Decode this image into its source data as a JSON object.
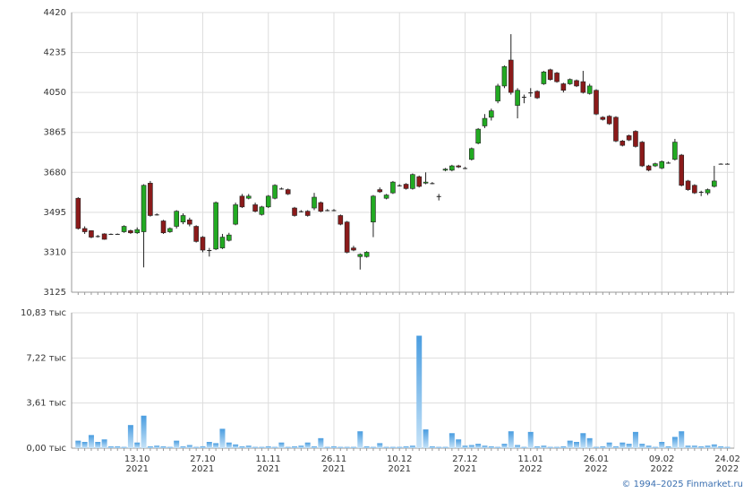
{
  "chart_data": [
    {
      "type": "candlestick",
      "ylim": [
        3125,
        4420
      ],
      "yticks": [
        3125,
        3310,
        3495,
        3680,
        3865,
        4050,
        4235,
        4420
      ],
      "grid": true,
      "up_color": "#22aa22",
      "down_color": "#8b1a1a",
      "open": [
        3560,
        3420,
        3410,
        3385,
        3395,
        3395,
        3395,
        3405,
        3410,
        3400,
        3405,
        3630,
        3485,
        3455,
        3405,
        3430,
        3450,
        3460,
        3430,
        3380,
        3320,
        3325,
        3330,
        3365,
        3440,
        3570,
        3560,
        3530,
        3485,
        3520,
        3560,
        3605,
        3600,
        3515,
        3500,
        3500,
        3515,
        3540,
        3505,
        3505,
        3480,
        3450,
        3330,
        3290,
        3290,
        3450,
        3600,
        3560,
        3585,
        3620,
        3625,
        3605,
        3660,
        3630,
        3630,
        3570,
        3690,
        3690,
        3710,
        3700,
        3740,
        3815,
        3895,
        3935,
        4010,
        4080,
        4200,
        3990,
        4030,
        4050,
        4055,
        4090,
        4155,
        4140,
        4090,
        4090,
        4105,
        4100,
        4045,
        4060,
        3935,
        3940,
        3935,
        3825,
        3850,
        3870,
        3820,
        3710,
        3710,
        3700,
        3725,
        3740,
        3760,
        3640,
        3620,
        3590,
        3585,
        3615,
        3720,
        3720
      ],
      "high": [
        3565,
        3430,
        3412,
        3390,
        3398,
        3397,
        3397,
        3435,
        3415,
        3425,
        3625,
        3640,
        3490,
        3460,
        3425,
        3505,
        3490,
        3470,
        3435,
        3385,
        3330,
        3545,
        3395,
        3400,
        3540,
        3580,
        3580,
        3540,
        3525,
        3575,
        3625,
        3610,
        3605,
        3520,
        3505,
        3505,
        3585,
        3545,
        3510,
        3510,
        3485,
        3455,
        3340,
        3305,
        3315,
        3575,
        3610,
        3580,
        3640,
        3625,
        3630,
        3675,
        3665,
        3680,
        3635,
        3580,
        3700,
        3715,
        3715,
        3705,
        3795,
        3885,
        3950,
        3975,
        4090,
        4175,
        4320,
        4070,
        4040,
        4070,
        4060,
        4150,
        4160,
        4145,
        4095,
        4115,
        4110,
        4150,
        4090,
        4065,
        3940,
        3945,
        3940,
        3830,
        3855,
        3875,
        3825,
        3715,
        3725,
        3735,
        3730,
        3835,
        3765,
        3645,
        3625,
        3595,
        3605,
        3710,
        3722,
        3722
      ],
      "low": [
        3415,
        3395,
        3375,
        3378,
        3368,
        3393,
        3393,
        3400,
        3395,
        3395,
        3240,
        3475,
        3480,
        3395,
        3400,
        3420,
        3440,
        3430,
        3355,
        3310,
        3290,
        3320,
        3325,
        3360,
        3435,
        3515,
        3555,
        3495,
        3480,
        3515,
        3555,
        3600,
        3575,
        3475,
        3495,
        3475,
        3505,
        3495,
        3500,
        3500,
        3435,
        3305,
        3315,
        3230,
        3285,
        3380,
        3585,
        3555,
        3580,
        3615,
        3600,
        3600,
        3610,
        3625,
        3625,
        3550,
        3685,
        3685,
        3700,
        3695,
        3735,
        3810,
        3885,
        3920,
        4000,
        4070,
        4040,
        3930,
        4000,
        4030,
        4020,
        4085,
        4105,
        4095,
        4050,
        4085,
        4075,
        4045,
        4040,
        3945,
        3920,
        3900,
        3820,
        3800,
        3825,
        3795,
        3705,
        3685,
        3705,
        3695,
        3720,
        3735,
        3615,
        3595,
        3580,
        3570,
        3575,
        3610,
        3718,
        3718
      ],
      "close": [
        3420,
        3405,
        3380,
        3385,
        3370,
        3395,
        3395,
        3430,
        3400,
        3415,
        3620,
        3480,
        3485,
        3400,
        3420,
        3500,
        3480,
        3440,
        3360,
        3320,
        3320,
        3540,
        3380,
        3390,
        3530,
        3520,
        3570,
        3500,
        3520,
        3570,
        3620,
        3605,
        3580,
        3480,
        3500,
        3480,
        3565,
        3500,
        3505,
        3505,
        3440,
        3310,
        3320,
        3300,
        3310,
        3570,
        3590,
        3575,
        3635,
        3620,
        3605,
        3670,
        3615,
        3635,
        3630,
        3570,
        3695,
        3710,
        3705,
        3700,
        3790,
        3880,
        3930,
        3965,
        4080,
        4170,
        4050,
        4060,
        4030,
        4050,
        4025,
        4145,
        4110,
        4100,
        4060,
        4110,
        4080,
        4050,
        4080,
        3950,
        3925,
        3905,
        3825,
        3805,
        3830,
        3800,
        3710,
        3690,
        3720,
        3730,
        3725,
        3820,
        3620,
        3600,
        3585,
        3590,
        3600,
        3640,
        3720,
        3720
      ]
    },
    {
      "type": "bar",
      "ylim": [
        0,
        10.83
      ],
      "yticks": [
        {
          "value": 0,
          "label": "0,00 тыс"
        },
        {
          "value": 3.61,
          "label": "3,61 тыс"
        },
        {
          "value": 7.22,
          "label": "7,22 тыс"
        },
        {
          "value": 10.83,
          "label": "10,83 тыс"
        }
      ],
      "grid": true,
      "color": "#7fbdec",
      "categories": [
        null,
        null,
        null,
        null,
        null,
        null,
        null,
        null,
        null,
        "13.10 2021",
        null,
        null,
        null,
        null,
        null,
        null,
        null,
        null,
        null,
        "27.10 2021",
        null,
        null,
        null,
        null,
        null,
        null,
        null,
        null,
        null,
        "11.11 2021",
        null,
        null,
        null,
        null,
        null,
        null,
        null,
        null,
        null,
        "26.11 2021",
        null,
        null,
        null,
        null,
        null,
        null,
        null,
        null,
        null,
        "10.12 2021",
        null,
        null,
        null,
        null,
        null,
        null,
        null,
        null,
        null,
        "27.12 2021",
        null,
        null,
        null,
        null,
        null,
        null,
        null,
        null,
        null,
        "11.01 2022",
        null,
        null,
        null,
        null,
        null,
        null,
        null,
        null,
        null,
        "26.01 2022",
        null,
        null,
        null,
        null,
        null,
        null,
        null,
        null,
        null,
        "09.02 2022",
        null,
        null,
        null,
        null,
        null,
        null,
        null,
        null,
        null,
        "24.02 2022"
      ],
      "values": [
        0.6,
        0.5,
        1.05,
        0.5,
        0.7,
        0.15,
        0.15,
        0.1,
        1.85,
        0.45,
        2.6,
        0.15,
        0.2,
        0.15,
        0.1,
        0.6,
        0.15,
        0.25,
        0.1,
        0.15,
        0.5,
        0.4,
        1.55,
        0.45,
        0.3,
        0.15,
        0.2,
        0.1,
        0.1,
        0.15,
        0.1,
        0.45,
        0.1,
        0.15,
        0.2,
        0.45,
        0.15,
        0.8,
        0.1,
        0.15,
        0.1,
        0.1,
        0.1,
        1.35,
        0.15,
        0.1,
        0.4,
        0.1,
        0.1,
        0.1,
        0.15,
        0.2,
        9.0,
        1.5,
        0.15,
        0.1,
        0.1,
        1.2,
        0.7,
        0.2,
        0.25,
        0.35,
        0.2,
        0.15,
        0.1,
        0.35,
        1.35,
        0.25,
        0.1,
        1.3,
        0.15,
        0.2,
        0.1,
        0.1,
        0.15,
        0.6,
        0.5,
        1.2,
        0.8,
        0.1,
        0.15,
        0.45,
        0.15,
        0.45,
        0.35,
        1.3,
        0.35,
        0.2,
        0.1,
        0.5,
        0.15,
        0.9,
        1.35,
        0.2,
        0.2,
        0.15,
        0.2,
        0.3,
        0.15,
        0.1
      ]
    }
  ],
  "footer": "© 1994–2025 Finmarket.ru"
}
